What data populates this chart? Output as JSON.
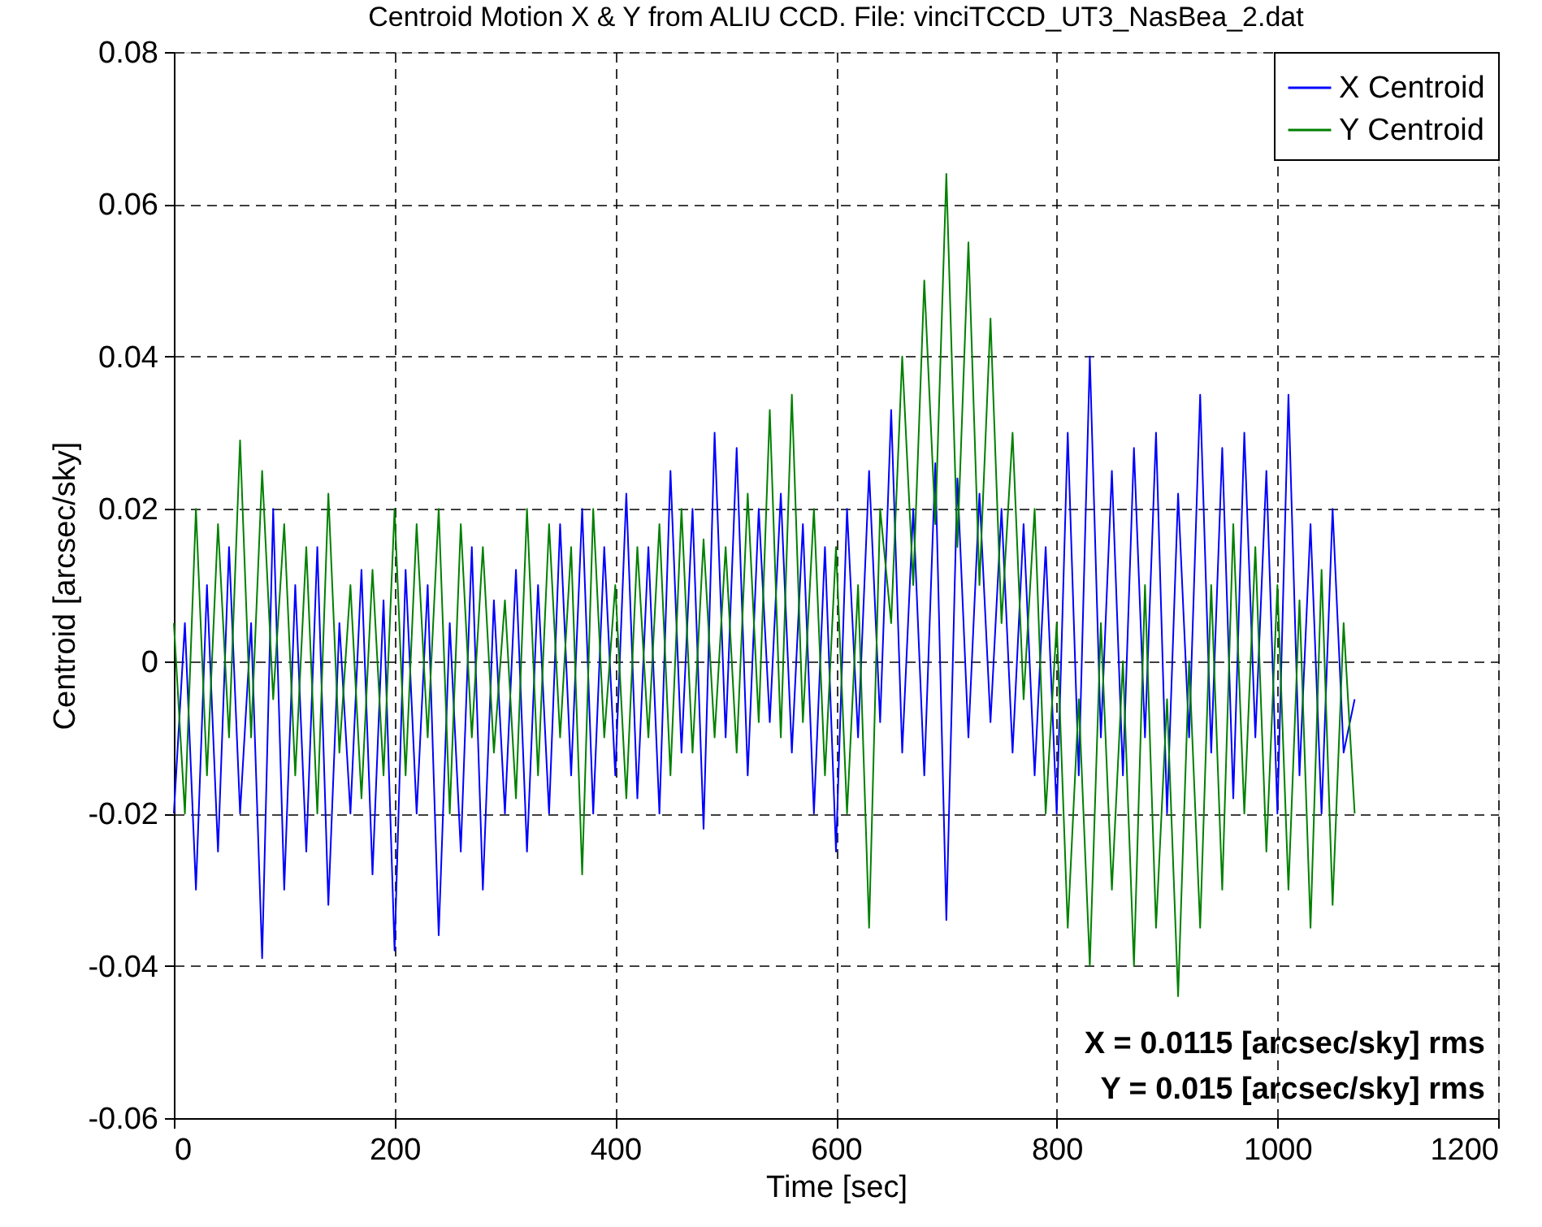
{
  "chart_data": {
    "type": "line",
    "title": "Centroid Motion X & Y from ALIU CCD. File:  vinciTCCD_UT3_NasBea_2.dat",
    "xlabel": "Time [sec]",
    "ylabel": "Centroid [arcsec/sky]",
    "x": [
      0,
      10,
      20,
      30,
      40,
      50,
      60,
      70,
      80,
      90,
      100,
      110,
      120,
      130,
      140,
      150,
      160,
      170,
      180,
      190,
      200,
      210,
      220,
      230,
      240,
      250,
      260,
      270,
      280,
      290,
      300,
      310,
      320,
      330,
      340,
      350,
      360,
      370,
      380,
      390,
      400,
      410,
      420,
      430,
      440,
      450,
      460,
      470,
      480,
      490,
      500,
      510,
      520,
      530,
      540,
      550,
      560,
      570,
      580,
      590,
      600,
      610,
      620,
      630,
      640,
      650,
      660,
      670,
      680,
      690,
      700,
      710,
      720,
      730,
      740,
      750,
      760,
      770,
      780,
      790,
      800,
      810,
      820,
      830,
      840,
      850,
      860,
      870,
      880,
      890,
      900,
      910,
      920,
      930,
      940,
      950,
      960,
      970,
      980,
      990,
      1000,
      1010,
      1020,
      1030,
      1040,
      1050,
      1060,
      1070
    ],
    "series": [
      {
        "name": "X Centroid",
        "color": "#0000ff",
        "values": [
          -0.02,
          0.005,
          -0.03,
          0.01,
          -0.025,
          0.015,
          -0.02,
          0.005,
          -0.039,
          0.02,
          -0.03,
          0.01,
          -0.025,
          0.015,
          -0.032,
          0.005,
          -0.02,
          0.012,
          -0.028,
          0.008,
          -0.038,
          0.012,
          -0.02,
          0.01,
          -0.036,
          0.005,
          -0.025,
          0.015,
          -0.03,
          0.008,
          -0.02,
          0.012,
          -0.025,
          0.01,
          -0.02,
          0.018,
          -0.015,
          0.02,
          -0.02,
          0.015,
          -0.015,
          0.022,
          -0.018,
          0.015,
          -0.02,
          0.025,
          -0.012,
          0.02,
          -0.022,
          0.03,
          -0.01,
          0.028,
          -0.015,
          0.02,
          -0.008,
          0.022,
          -0.012,
          0.018,
          -0.02,
          0.015,
          -0.025,
          0.02,
          -0.01,
          0.025,
          -0.008,
          0.033,
          -0.012,
          0.02,
          -0.015,
          0.026,
          -0.034,
          0.024,
          -0.01,
          0.022,
          -0.008,
          0.02,
          -0.012,
          0.018,
          -0.015,
          0.015,
          -0.02,
          0.03,
          -0.015,
          0.04,
          -0.01,
          0.025,
          -0.015,
          0.028,
          -0.01,
          0.03,
          -0.02,
          0.022,
          -0.01,
          0.035,
          -0.012,
          0.028,
          -0.018,
          0.03,
          -0.01,
          0.025,
          -0.02,
          0.035,
          -0.015,
          0.018,
          -0.02,
          0.02,
          -0.012,
          -0.005
        ]
      },
      {
        "name": "Y Centroid",
        "color": "#008000",
        "values": [
          0.005,
          -0.02,
          0.02,
          -0.015,
          0.018,
          -0.01,
          0.029,
          -0.01,
          0.025,
          -0.005,
          0.018,
          -0.015,
          0.015,
          -0.02,
          0.022,
          -0.012,
          0.01,
          -0.018,
          0.012,
          -0.015,
          0.02,
          -0.015,
          0.018,
          -0.01,
          0.02,
          -0.02,
          0.018,
          -0.01,
          0.015,
          -0.012,
          0.008,
          -0.018,
          0.02,
          -0.015,
          0.018,
          -0.01,
          0.015,
          -0.028,
          0.02,
          -0.01,
          0.01,
          -0.018,
          0.015,
          -0.01,
          0.018,
          -0.015,
          0.02,
          -0.012,
          0.016,
          -0.01,
          0.015,
          -0.012,
          0.022,
          -0.008,
          0.033,
          -0.01,
          0.035,
          -0.008,
          0.02,
          -0.015,
          0.015,
          -0.02,
          0.01,
          -0.035,
          0.02,
          0.005,
          0.04,
          0.01,
          0.05,
          0.018,
          0.064,
          0.015,
          0.055,
          0.01,
          0.045,
          0.005,
          0.03,
          -0.005,
          0.02,
          -0.02,
          0.005,
          -0.035,
          -0.005,
          -0.04,
          0.005,
          -0.03,
          0.0,
          -0.04,
          0.01,
          -0.035,
          -0.005,
          -0.044,
          0.0,
          -0.035,
          0.01,
          -0.03,
          0.018,
          -0.02,
          0.015,
          -0.025,
          0.01,
          -0.03,
          0.008,
          -0.035,
          0.012,
          -0.032,
          0.005,
          -0.02
        ]
      }
    ],
    "xlim": [
      0,
      1200
    ],
    "xticks": [
      0,
      200,
      400,
      600,
      800,
      1000,
      1200
    ],
    "ylim": [
      -0.06,
      0.08
    ],
    "yticks": [
      -0.06,
      -0.04,
      -0.02,
      0,
      0.02,
      0.04,
      0.06,
      0.08
    ],
    "grid": true,
    "legend": "top right",
    "line_style": "solid",
    "annotations": [
      "X = 0.0115 [arcsec/sky] rms",
      "Y = 0.015 [arcsec/sky] rms"
    ]
  }
}
